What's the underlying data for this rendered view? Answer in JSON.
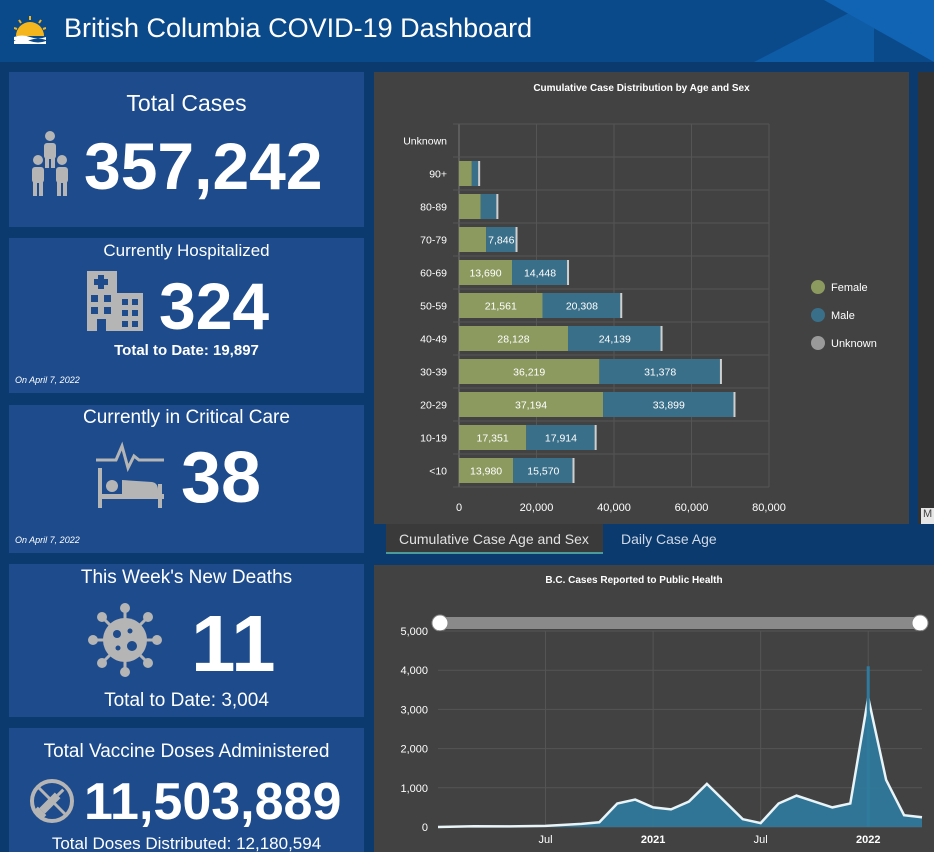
{
  "header": {
    "title": "British Columbia COVID-19 Dashboard"
  },
  "total_cases": {
    "title": "Total Cases",
    "value": "357,242"
  },
  "hospitalized": {
    "title": "Currently Hospitalized",
    "value": "324",
    "total": "Total to Date: 19,897",
    "note": "On April 7, 2022"
  },
  "critical": {
    "title": "Currently in Critical Care",
    "value": "38",
    "note": "On April 7, 2022"
  },
  "deaths": {
    "title": "This Week's New Deaths",
    "value": "11",
    "total": "Total to Date: 3,004"
  },
  "vaccine": {
    "title": "Total Vaccine Doses Administered",
    "value": "11,503,889",
    "total": "Total Doses Distributed: 12,180,594"
  },
  "tabs": {
    "tab1": "Cumulative Case Age and Sex",
    "tab2": "Daily Case Age"
  },
  "colors": {
    "female": "#8c9a5f",
    "male": "#3a6f89",
    "unknown": "#9a9a9a",
    "card_bg": "#1d4b8c",
    "area": "#2f7b9e"
  },
  "chart_data": [
    {
      "type": "bar",
      "title": "Cumulative Case Distribution by Age and Sex",
      "categories": [
        "Unknown",
        "90+",
        "80-89",
        "70-79",
        "60-69",
        "50-59",
        "40-49",
        "30-39",
        "20-29",
        "10-19",
        "<10"
      ],
      "series": [
        {
          "name": "Female",
          "values": [
            0,
            3300,
            5600,
            7000,
            13690,
            21561,
            28128,
            36219,
            37194,
            17351,
            13980
          ],
          "labels": [
            "",
            "",
            "",
            "",
            "13,690",
            "21,561",
            "28,128",
            "36,219",
            "37,194",
            "17,351",
            "13,980"
          ]
        },
        {
          "name": "Male",
          "values": [
            0,
            1900,
            4300,
            7846,
            14448,
            20308,
            24139,
            31378,
            33899,
            17914,
            15570
          ],
          "labels": [
            "",
            "",
            "",
            "7,846",
            "14,448",
            "20,308",
            "24,139",
            "31,378",
            "33,899",
            "17,914",
            "15,570"
          ]
        },
        {
          "name": "Unknown",
          "values": [
            0,
            0,
            0,
            0,
            0,
            0,
            0,
            0,
            0,
            0,
            0
          ]
        }
      ],
      "xlim": [
        0,
        80000
      ],
      "xticks": [
        "0",
        "20,000",
        "40,000",
        "60,000",
        "80,000"
      ],
      "stacked": true,
      "legend": "right"
    },
    {
      "type": "area",
      "title": "B.C. Cases Reported to Public Health",
      "ylim": [
        0,
        5000
      ],
      "yticks": [
        "0",
        "1,000",
        "2,000",
        "3,000",
        "4,000",
        "5,000"
      ],
      "xticks": [
        "Jul",
        "2021",
        "Jul",
        "2022"
      ],
      "x": [
        "2020-01",
        "2020-03",
        "2020-05",
        "2020-07",
        "2020-09",
        "2020-10",
        "2020-11",
        "2020-12",
        "2021-01",
        "2021-02",
        "2021-03",
        "2021-04",
        "2021-05",
        "2021-06",
        "2021-07",
        "2021-08",
        "2021-09",
        "2021-10",
        "2021-11",
        "2021-12",
        "2022-01",
        "2022-02",
        "2022-03",
        "2022-04"
      ],
      "values": [
        0,
        20,
        15,
        30,
        80,
        120,
        600,
        700,
        500,
        450,
        650,
        1100,
        650,
        200,
        100,
        600,
        800,
        650,
        500,
        600,
        3300,
        1200,
        300,
        250
      ],
      "peak_bar": 4100
    }
  ]
}
